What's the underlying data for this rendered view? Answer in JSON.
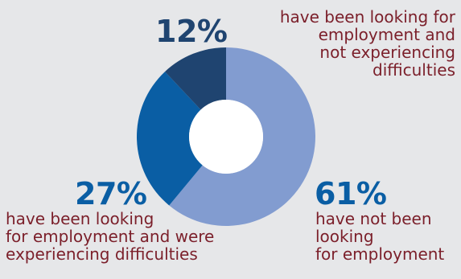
{
  "chart_data": {
    "type": "pie",
    "categories": [
      "have not been looking for employment",
      "have been looking for employment and were experiencing difficulties",
      "have been looking for employment and not experiencing difficulties"
    ],
    "values": [
      61,
      27,
      12
    ],
    "value_labels": [
      "61%",
      "27%",
      "12%"
    ],
    "descriptions": [
      "have not been\nlooking\nfor employment",
      "have been looking\nfor employment and were\nexperiencing difficulties",
      "have been looking for\nemployment and\nnot experiencing\ndifficulties"
    ],
    "colors": [
      "#829cd0",
      "#0a5ea4",
      "#1f4470"
    ],
    "value_label_colors": [
      "#0a5ea4",
      "#0a5ea4",
      "#1f4470"
    ],
    "description_color": "#7b1f2a",
    "donut": true,
    "legend": "none"
  }
}
